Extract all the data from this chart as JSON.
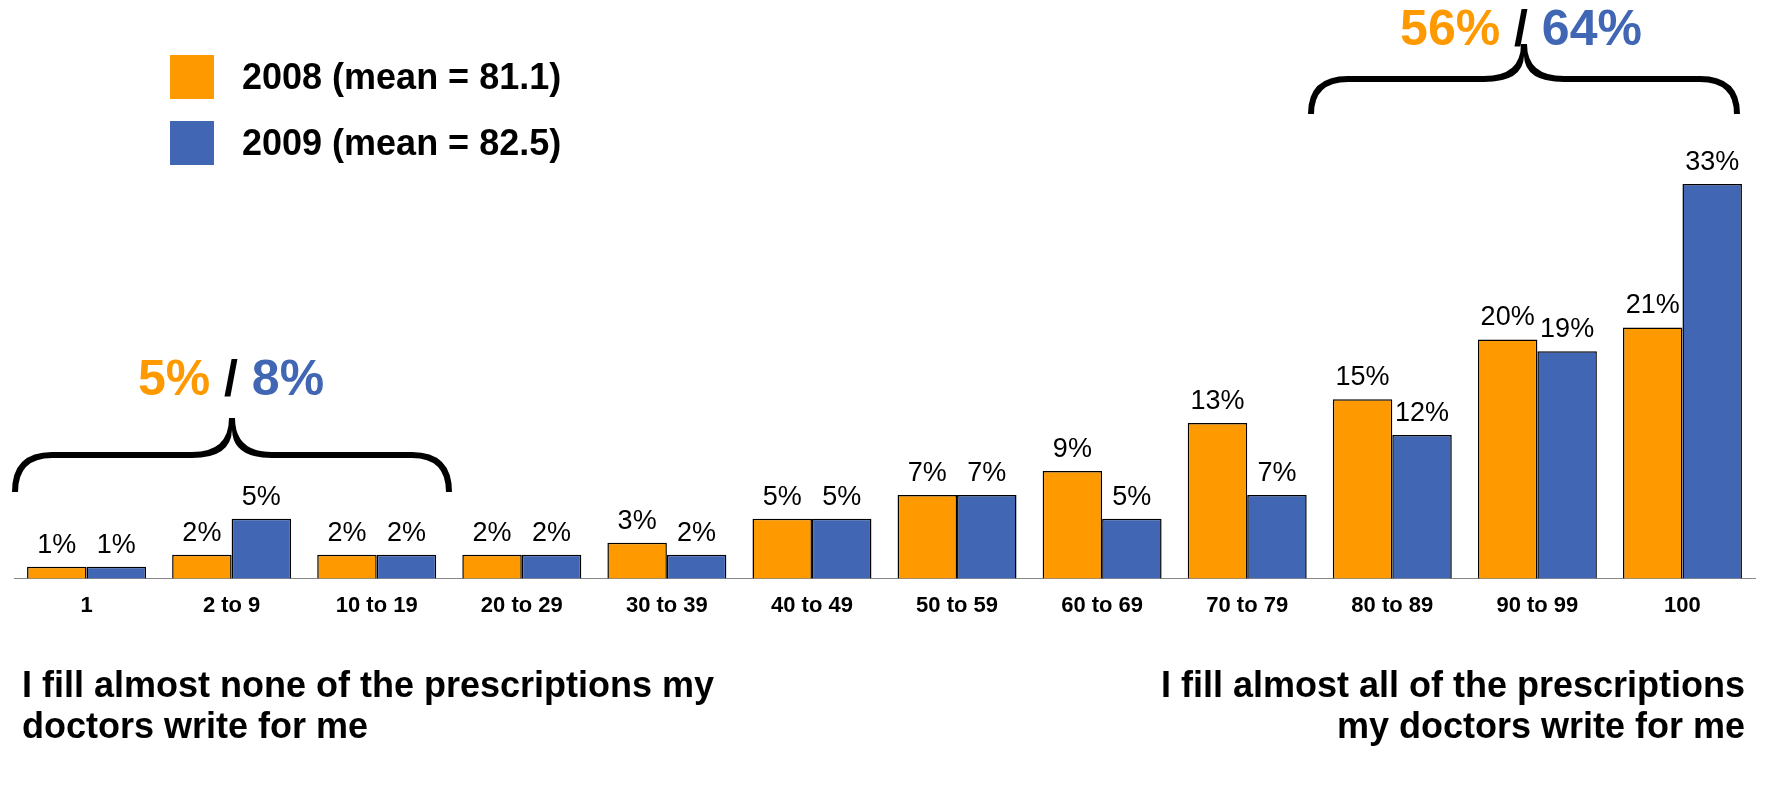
{
  "chart_data": {
    "type": "bar",
    "categories": [
      "1",
      "2 to 9",
      "10 to 19",
      "20 to 29",
      "30 to 39",
      "40 to 49",
      "50 to 59",
      "60 to 69",
      "70 to 79",
      "80 to 89",
      "90 to 99",
      "100"
    ],
    "series": [
      {
        "name": "2008 (mean = 81.1)",
        "color": "#ff9900",
        "values": [
          1,
          2,
          2,
          2,
          3,
          5,
          7,
          9,
          13,
          15,
          20,
          21
        ],
        "value_labels": [
          "1%",
          "2%",
          "2%",
          "2%",
          "3%",
          "5%",
          "7%",
          "9%",
          "13%",
          "15%",
          "20%",
          "21%"
        ]
      },
      {
        "name": "2009 (mean = 82.5)",
        "color": "#4066b4",
        "values": [
          1,
          5,
          2,
          2,
          2,
          5,
          7,
          5,
          7,
          12,
          19,
          33
        ],
        "value_labels": [
          "1%",
          "5%",
          "2%",
          "2%",
          "2%",
          "5%",
          "7%",
          "5%",
          "7%",
          "12%",
          "19%",
          "33%"
        ]
      }
    ],
    "legend": "top left",
    "grid": false,
    "annotations": [
      "5% / 8%",
      "56% / 64%",
      "I fill almost none of the prescriptions my doctors write for me",
      "I fill almost all of the prescriptions my doctors write for me"
    ]
  }
}
